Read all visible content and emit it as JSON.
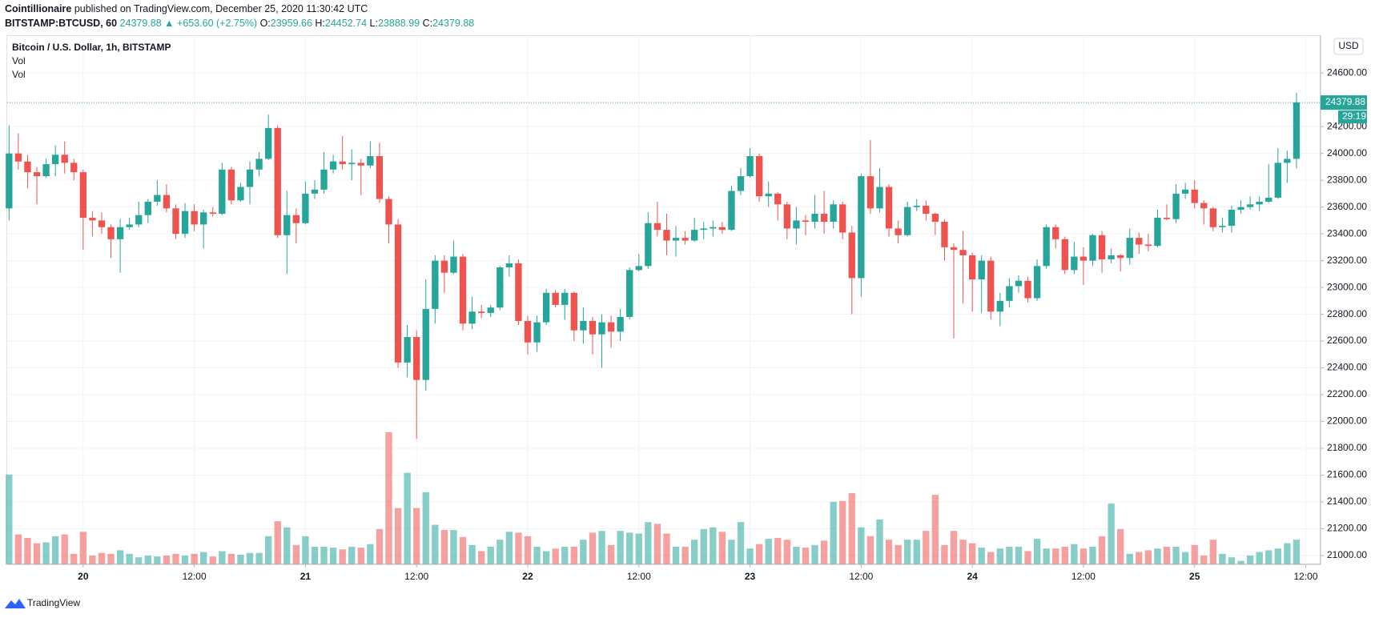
{
  "header": {
    "publisher": "Cointillionaire",
    "published": "published on TradingView.com, December 25, 2020 11:30:42 UTC",
    "symbol": "BITSTAMP:BTCUSD, 60",
    "change": "▲ +653.60 (+2.75%)",
    "ohlc_labels": [
      "O:",
      "H:",
      "L:",
      "C:"
    ]
  },
  "chart_data": {
    "type": "candlestick",
    "title": "Bitcoin / U.S. Dollar, 1h, BITSTAMP",
    "indicators": [
      "Vol",
      "Vol"
    ],
    "currency": "USD",
    "countdown": "29:19",
    "up_color": "#26a69a",
    "down_color": "#ef5350",
    "grid": true,
    "open": [
      23590,
      24000,
      23940,
      23860,
      23830,
      23920,
      23990,
      23930,
      23860,
      23520,
      23500,
      23450,
      23360,
      23450,
      23470,
      23540,
      23640,
      23690,
      23590,
      23400,
      23570,
      23470,
      23560,
      23550,
      23880,
      23650,
      23750,
      23880,
      23960,
      24190,
      23390,
      23540,
      23480,
      23700,
      23730,
      23880,
      23940,
      23920,
      23930,
      23910,
      23980,
      23660,
      23470,
      22440,
      22630,
      22310,
      22840,
      23200,
      23110,
      23230,
      22730,
      22820,
      22810,
      22850,
      23150,
      23180,
      22750,
      22590,
      22740,
      22960,
      22870,
      22960,
      22680,
      22750,
      22650,
      22740,
      22670,
      22780,
      23130,
      23160,
      23480,
      23430,
      23350,
      23370,
      23350,
      23430,
      23440,
      23450,
      23430,
      23720,
      23830,
      23980,
      23680,
      23700,
      23620,
      23440,
      23500,
      23490,
      23550,
      23490,
      23620,
      23410,
      23070,
      23830,
      23590,
      23750,
      23440,
      23390,
      23600,
      23610,
      23550,
      23490,
      23300,
      23280,
      23240,
      23060,
      23200,
      22820,
      22900,
      23010,
      23050,
      22920,
      23160,
      23450,
      23360,
      23130,
      23230,
      23200,
      23390,
      23210,
      23240,
      23220,
      23370,
      23320,
      23310,
      23520,
      23510,
      23700,
      23730,
      23630,
      23590,
      23450,
      23460,
      23580,
      23600,
      23620,
      23640,
      23670,
      23930,
      23959.66
    ],
    "high": [
      24210,
      24150,
      23990,
      23900,
      23960,
      24060,
      24090,
      23960,
      23880,
      23570,
      23560,
      23470,
      23510,
      23520,
      23640,
      23660,
      23800,
      23770,
      23620,
      23630,
      23620,
      23580,
      23600,
      23930,
      23900,
      23780,
      23940,
      24010,
      24290,
      24210,
      23720,
      23590,
      23790,
      23800,
      24010,
      23990,
      24130,
      24030,
      23960,
      24090,
      24080,
      23680,
      23510,
      22720,
      22680,
      23060,
      23240,
      23240,
      23350,
      23250,
      22930,
      22870,
      22870,
      23160,
      23240,
      23210,
      22790,
      22790,
      22990,
      22980,
      22990,
      22970,
      22850,
      22780,
      22800,
      22790,
      22840,
      23150,
      23250,
      23560,
      23640,
      23550,
      23460,
      23420,
      23520,
      23490,
      23500,
      23490,
      23760,
      23890,
      24040,
      24000,
      23790,
      23710,
      23640,
      23600,
      23540,
      23690,
      23720,
      23650,
      23640,
      23460,
      23850,
      24100,
      23890,
      23770,
      23500,
      23640,
      23660,
      23650,
      23560,
      23510,
      23330,
      23420,
      23260,
      23240,
      23230,
      22960,
      23070,
      23090,
      23080,
      23210,
      23470,
      23470,
      23380,
      23340,
      23300,
      23400,
      23420,
      23290,
      23250,
      23440,
      23410,
      23400,
      23580,
      23620,
      23770,
      23780,
      23800,
      23650,
      23600,
      23520,
      23610,
      23650,
      23680,
      23680,
      23920,
      24040,
      24020,
      24452.74
    ],
    "low": [
      23500,
      23880,
      23740,
      23620,
      23820,
      23830,
      23850,
      23800,
      23280,
      23380,
      23400,
      23220,
      23110,
      23430,
      23450,
      23480,
      23610,
      23560,
      23360,
      23370,
      23420,
      23290,
      23530,
      23540,
      23620,
      23640,
      23620,
      23830,
      23950,
      23370,
      23100,
      23330,
      23470,
      23660,
      23700,
      23850,
      23880,
      23800,
      23690,
      23890,
      23630,
      23330,
      22400,
      22330,
      21870,
      22230,
      22730,
      22960,
      23100,
      22680,
      22690,
      22770,
      22780,
      22830,
      23080,
      22720,
      22500,
      22520,
      22720,
      22850,
      22760,
      22600,
      22580,
      22500,
      22400,
      22550,
      22600,
      22760,
      23120,
      23140,
      23380,
      23240,
      23230,
      23320,
      23340,
      23360,
      23380,
      23400,
      23420,
      23690,
      23820,
      23640,
      23600,
      23500,
      23360,
      23320,
      23390,
      23440,
      23400,
      23440,
      23360,
      22800,
      22930,
      23550,
      23560,
      23380,
      23330,
      23380,
      23570,
      23500,
      23390,
      23200,
      22620,
      22880,
      22820,
      22810,
      22760,
      22710,
      22850,
      22960,
      22890,
      22900,
      23140,
      23290,
      23100,
      23100,
      23020,
      23160,
      23110,
      23180,
      23120,
      23170,
      23250,
      23270,
      23300,
      23500,
      23480,
      23660,
      23590,
      23470,
      23420,
      23410,
      23410,
      23550,
      23580,
      23570,
      23630,
      23660,
      23780,
      23888.99
    ],
    "close": [
      24000,
      23940,
      23860,
      23830,
      23920,
      23990,
      23930,
      23860,
      23520,
      23500,
      23450,
      23360,
      23450,
      23470,
      23540,
      23640,
      23690,
      23590,
      23400,
      23570,
      23470,
      23560,
      23550,
      23880,
      23650,
      23750,
      23880,
      23960,
      24190,
      23390,
      23540,
      23480,
      23700,
      23730,
      23880,
      23940,
      23920,
      23930,
      23910,
      23980,
      23660,
      23470,
      22440,
      22630,
      22310,
      22840,
      23200,
      23110,
      23230,
      22730,
      22820,
      22810,
      22850,
      23150,
      23180,
      22750,
      22590,
      22740,
      22960,
      22870,
      22960,
      22680,
      22750,
      22650,
      22740,
      22670,
      22780,
      23130,
      23160,
      23480,
      23430,
      23350,
      23370,
      23350,
      23430,
      23440,
      23450,
      23430,
      23720,
      23830,
      23980,
      23680,
      23700,
      23620,
      23440,
      23500,
      23490,
      23550,
      23490,
      23620,
      23410,
      23070,
      23830,
      23590,
      23750,
      23440,
      23390,
      23600,
      23610,
      23550,
      23490,
      23300,
      23280,
      23240,
      23060,
      23200,
      22820,
      22900,
      23010,
      23050,
      22920,
      23160,
      23450,
      23360,
      23130,
      23230,
      23200,
      23390,
      23210,
      23240,
      23220,
      23370,
      23320,
      23310,
      23520,
      23510,
      23700,
      23730,
      23630,
      23590,
      23450,
      23460,
      23580,
      23600,
      23620,
      23640,
      23670,
      23930,
      23959.66,
      24379.88
    ],
    "volume": [
      102,
      34,
      30,
      24,
      25,
      32,
      34,
      12,
      37,
      10,
      13,
      12,
      16,
      12,
      8,
      10,
      9,
      10,
      12,
      10,
      12,
      14,
      9,
      15,
      12,
      11,
      13,
      13,
      32,
      49,
      42,
      22,
      32,
      20,
      20,
      19,
      17,
      20,
      19,
      23,
      40,
      150,
      64,
      104,
      64,
      82,
      45,
      39,
      39,
      31,
      22,
      15,
      20,
      28,
      37,
      36,
      32,
      20,
      15,
      18,
      20,
      20,
      28,
      36,
      38,
      22,
      38,
      36,
      35,
      48,
      46,
      35,
      20,
      20,
      28,
      40,
      42,
      37,
      28,
      48,
      18,
      23,
      29,
      30,
      28,
      20,
      19,
      22,
      27,
      71,
      72,
      81,
      42,
      32,
      51,
      28,
      22,
      28,
      28,
      38,
      79,
      22,
      38,
      28,
      24,
      19,
      14,
      18,
      20,
      20,
      15,
      29,
      18,
      18,
      20,
      23,
      18,
      20,
      32,
      69,
      40,
      12,
      14,
      16,
      18,
      20,
      20,
      14,
      22,
      10,
      28,
      12,
      8,
      4,
      10,
      14,
      16,
      18,
      24,
      28
    ],
    "xlim": [
      -0.2,
      141.6
    ],
    "xticks": [
      {
        "value": 8,
        "label": "20"
      },
      {
        "value": 20,
        "label": "12:00"
      },
      {
        "value": 32,
        "label": "21"
      },
      {
        "value": 44,
        "label": "12:00"
      },
      {
        "value": 56,
        "label": "22"
      },
      {
        "value": 68,
        "label": "12:00"
      },
      {
        "value": 80,
        "label": "23"
      },
      {
        "value": 92,
        "label": "12:00"
      },
      {
        "value": 104,
        "label": "24"
      },
      {
        "value": 116,
        "label": "12:00"
      },
      {
        "value": 128,
        "label": "25"
      },
      {
        "value": 140,
        "label": "12:00"
      }
    ],
    "ylim": [
      20934,
      24882
    ],
    "yticks": [
      {
        "value": 21000,
        "label": "21000.00"
      },
      {
        "value": 21200,
        "label": "21200.00"
      },
      {
        "value": 21400,
        "label": "21400.00"
      },
      {
        "value": 21600,
        "label": "21600.00"
      },
      {
        "value": 21800,
        "label": "21800.00"
      },
      {
        "value": 22000,
        "label": "22000.00"
      },
      {
        "value": 22200,
        "label": "22200.00"
      },
      {
        "value": 22400,
        "label": "22400.00"
      },
      {
        "value": 22600,
        "label": "22600.00"
      },
      {
        "value": 22800,
        "label": "22800.00"
      },
      {
        "value": 23000,
        "label": "23000.00"
      },
      {
        "value": 23200,
        "label": "23200.00"
      },
      {
        "value": 23400,
        "label": "23400.00"
      },
      {
        "value": 23600,
        "label": "23600.00"
      },
      {
        "value": 23800,
        "label": "23800.00"
      },
      {
        "value": 24000,
        "label": "24000.00"
      },
      {
        "value": 24200,
        "label": "24200.00"
      },
      {
        "value": 24600,
        "label": "24600.00"
      }
    ]
  },
  "footer": {
    "brand": "TradingView"
  }
}
